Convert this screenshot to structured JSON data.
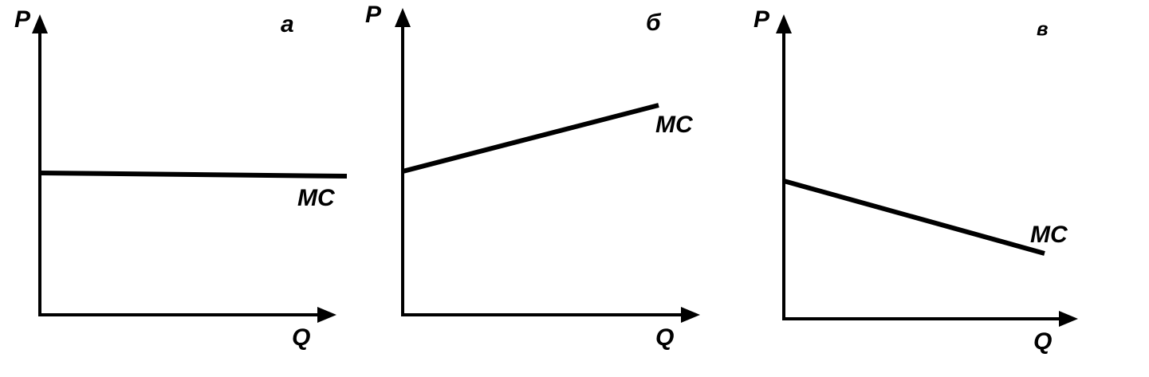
{
  "panels": [
    {
      "label": "а",
      "y_axis": "P",
      "x_axis": "Q",
      "curve": "MC"
    },
    {
      "label": "б",
      "y_axis": "P",
      "x_axis": "Q",
      "curve": "MC"
    },
    {
      "label": "в",
      "y_axis": "P",
      "x_axis": "Q",
      "curve": "MC"
    }
  ]
}
